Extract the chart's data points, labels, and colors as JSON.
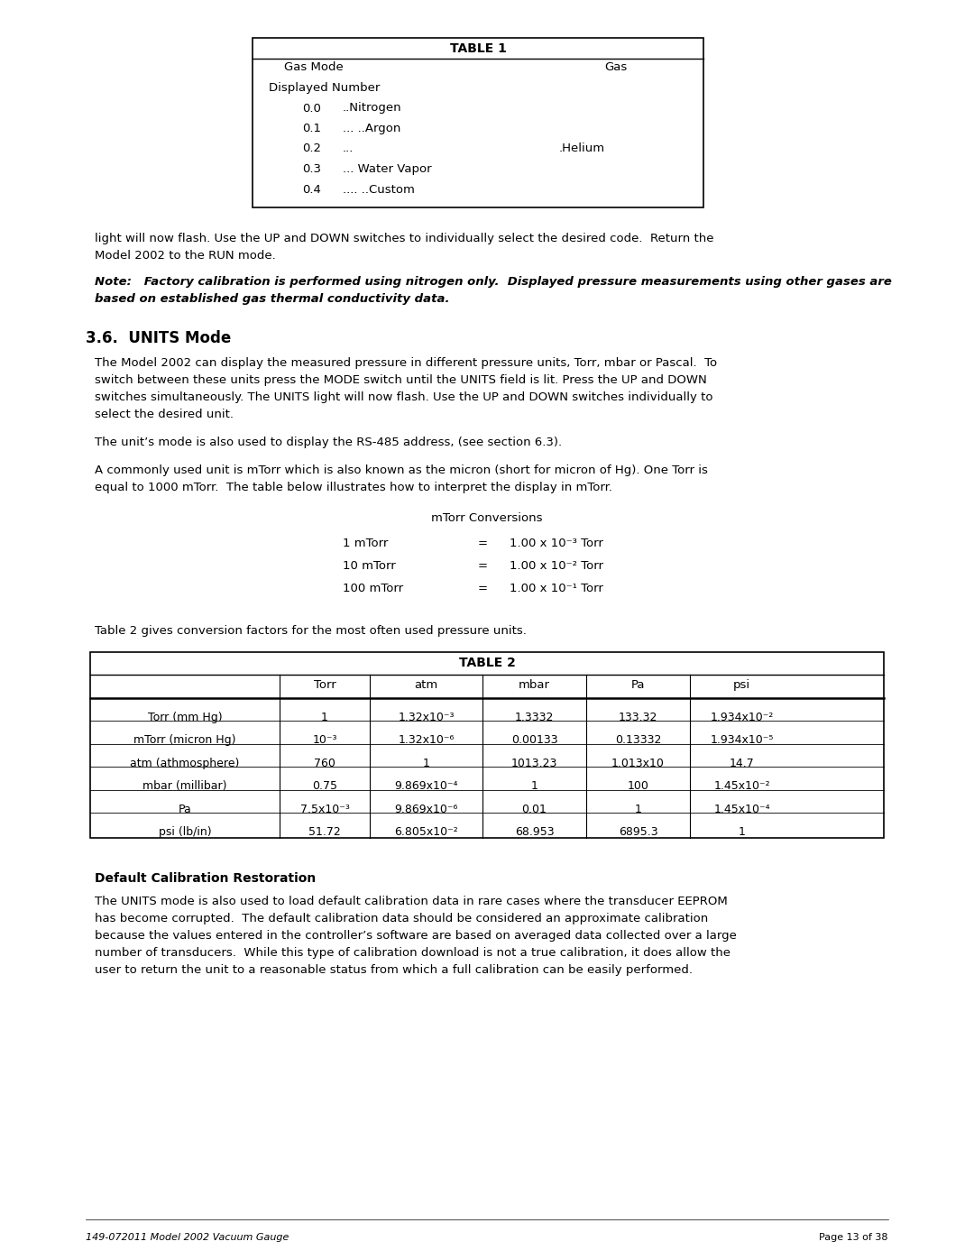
{
  "page_width": 10.8,
  "page_height": 13.97,
  "background_color": "#ffffff",
  "table1_title": "TABLE 1",
  "table1_col1_header": "Gas Mode",
  "table1_col2_header": "Gas",
  "table1_subheader": "Displayed Number",
  "table1_rows": [
    [
      "0.0",
      "..Nitrogen",
      ""
    ],
    [
      "0.1",
      "... ..Argon",
      ""
    ],
    [
      "0.2",
      "...",
      ".Helium"
    ],
    [
      "0.3",
      "... Water Vapor",
      ""
    ],
    [
      "0.4",
      ".... ..Custom",
      ""
    ]
  ],
  "para1": "light will now flash. Use the UP and DOWN switches to individually select the desired code.  Return the\nModel 2002 to the RUN mode.",
  "note": "Note:   Factory calibration is performed using nitrogen only.  Displayed pressure measurements using other gases are\nbased on established gas thermal conductivity data.",
  "section_heading": "3.6.  UNITS Mode",
  "section_para1": "The Model 2002 can display the measured pressure in different pressure units, Torr, mbar or Pascal.  To\nswitch between these units press the MODE switch until the UNITS field is lit. Press the UP and DOWN\nswitches simultaneously. The UNITS light will now flash. Use the UP and DOWN switches individually to\nselect the desired unit.",
  "section_para2": "The unit’s mode is also used to display the RS-485 address, (see section 6.3).",
  "section_para3": "A commonly used unit is mTorr which is also known as the micron (short for micron of Hg). One Torr is\nequal to 1000 mTorr.  The table below illustrates how to interpret the display in mTorr.",
  "mtorr_title": "mTorr Conversions",
  "mtorr_rows": [
    [
      "1 mTorr",
      "=",
      "1.00 x 10⁻³ Torr"
    ],
    [
      "10 mTorr",
      "=",
      "1.00 x 10⁻² Torr"
    ],
    [
      "100 mTorr",
      "=",
      "1.00 x 10⁻¹ Torr"
    ]
  ],
  "table2_intro": "Table 2 gives conversion factors for the most often used pressure units.",
  "table2_title": "TABLE 2",
  "table2_headers": [
    "",
    "Torr",
    "atm",
    "mbar",
    "Pa",
    "psi"
  ],
  "table2_rows": [
    [
      "Torr (mm Hg)",
      "1",
      "1.32x10⁻³",
      "1.3332",
      "133.32",
      "1.934x10⁻²"
    ],
    [
      "mTorr (micron Hg)",
      "10⁻³",
      "1.32x10⁻⁶",
      "0.00133",
      "0.13332",
      "1.934x10⁻⁵"
    ],
    [
      "atm (athmosphere)",
      "760",
      "1",
      "1013.23",
      "1.013x10",
      "14.7"
    ],
    [
      "mbar (millibar)",
      "0.75",
      "9.869x10⁻⁴",
      "1",
      "100",
      "1.45x10⁻²"
    ],
    [
      "Pa",
      "7.5x10⁻³",
      "9.869x10⁻⁶",
      "0.01",
      "1",
      "1.45x10⁻⁴"
    ],
    [
      "psi (lb/in)",
      "51.72",
      "6.805x10⁻²",
      "68.953",
      "6895.3",
      "1"
    ]
  ],
  "dcr_heading": "Default Calibration Restoration",
  "dcr_para": "The UNITS mode is also used to load default calibration data in rare cases where the transducer EEPROM\nhas become corrupted.  The default calibration data should be considered an approximate calibration\nbecause the values entered in the controller’s software are based on averaged data collected over a large\nnumber of transducers.  While this type of calibration download is not a true calibration, it does allow the\nuser to return the unit to a reasonable status from which a full calibration can be easily performed.",
  "footer_left": "149-072011 Model 2002 Vacuum Gauge",
  "footer_right": "Page 13 of 38"
}
